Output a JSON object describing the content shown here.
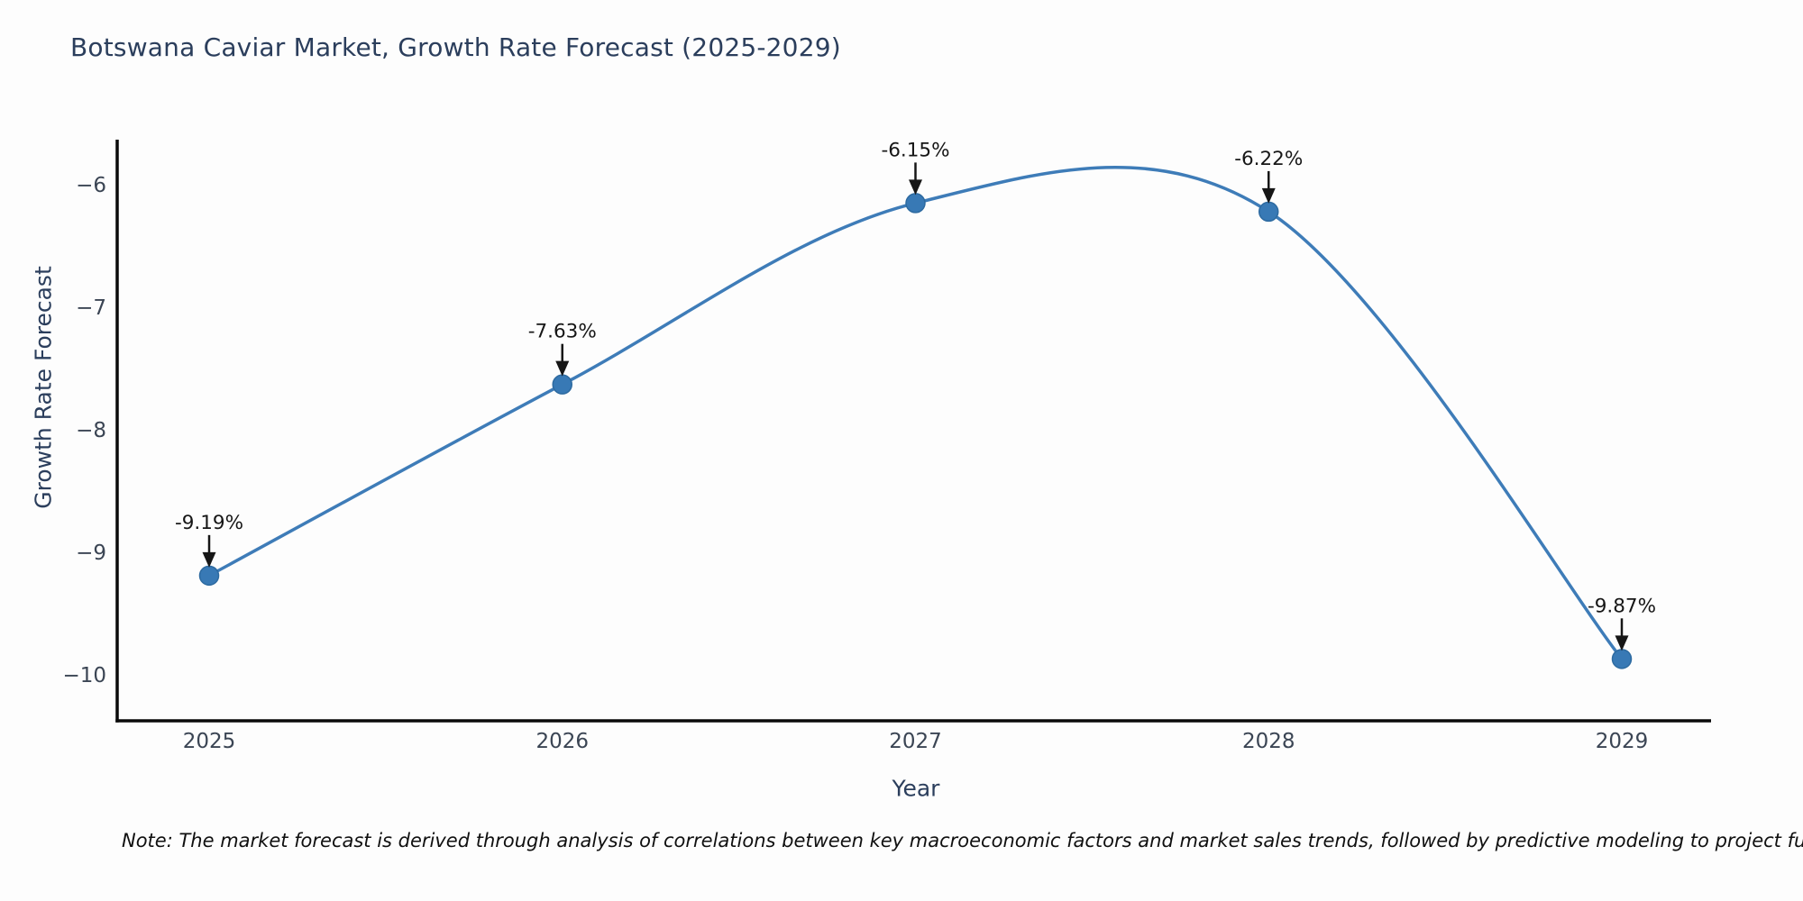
{
  "title": {
    "text": "Botswana Caviar Market, Growth Rate Forecast (2025-2029)",
    "color": "#2b3e5c"
  },
  "note": {
    "text": "Note: The market forecast is derived through analysis of correlations between key macroeconomic factors and market sales trends, followed by predictive modeling to project future sales"
  },
  "chart_data": {
    "type": "line",
    "title": "Botswana Caviar Market, Growth Rate Forecast (2025-2029)",
    "xlabel": "Year",
    "ylabel": "Growth Rate Forecast",
    "x": [
      2025,
      2026,
      2027,
      2028,
      2029
    ],
    "y": [
      -9.19,
      -7.63,
      -6.15,
      -6.22,
      -9.87
    ],
    "point_labels": [
      "-9.19%",
      "-7.63%",
      "-6.15%",
      "-6.22%",
      "-9.87%"
    ],
    "xtick_labels": [
      "2025",
      "2026",
      "2027",
      "2028",
      "2029"
    ],
    "yticks": [
      -6,
      -7,
      -8,
      -9,
      -10
    ],
    "ytick_labels": [
      "−6",
      "−7",
      "−8",
      "−9",
      "−10"
    ],
    "ylim": [
      -10.4,
      -5.6
    ],
    "line_shape": "spline",
    "grid": false,
    "legend": "none",
    "line_color": "#3e7cb8",
    "marker_color": "#3879b5",
    "marker_edge_color": "#2d6aa0",
    "axis_color": "#0a0a0a",
    "tick_color": "#3b4554",
    "axis_title_color": "#2b3e5c",
    "annotation_color": "#161616"
  }
}
